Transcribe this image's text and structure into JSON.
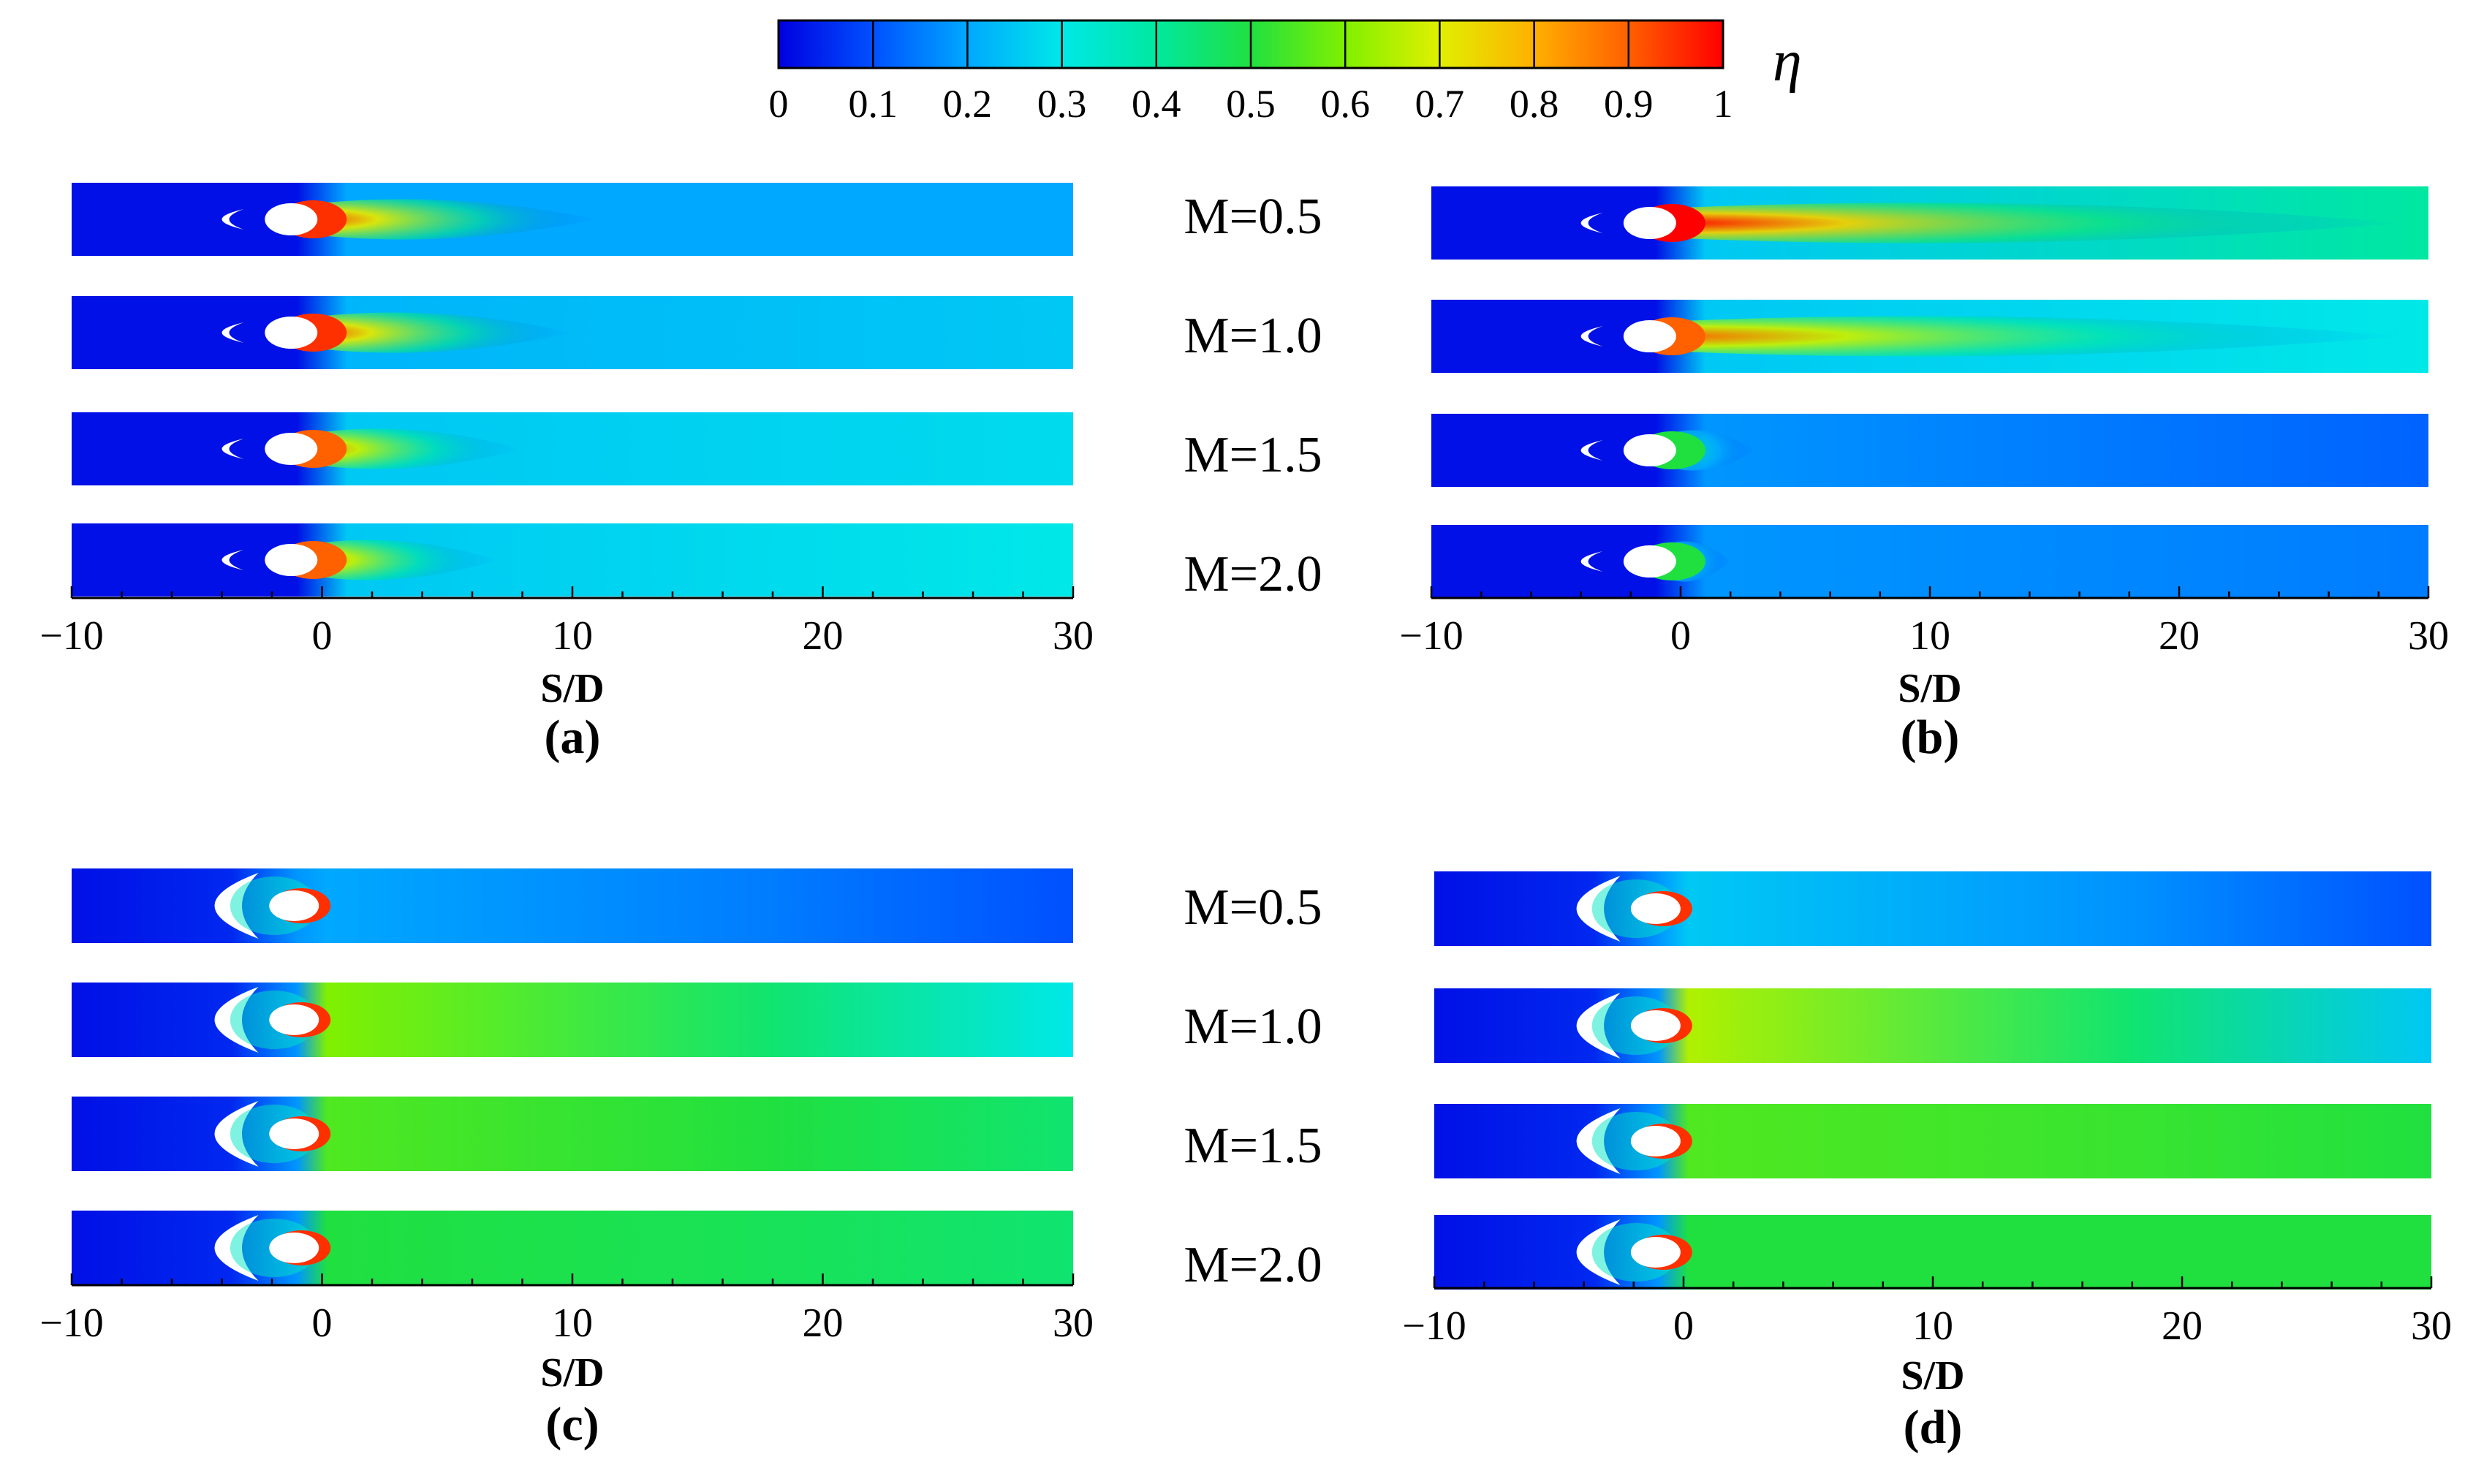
{
  "colorbar": {
    "symbol": "η",
    "ticks": [
      "0",
      "0.1",
      "0.2",
      "0.3",
      "0.4",
      "0.5",
      "0.6",
      "0.7",
      "0.8",
      "0.9",
      "1"
    ],
    "colors": [
      "#0000e0",
      "#0050ff",
      "#00a8ff",
      "#00e8e8",
      "#00e8a0",
      "#20e040",
      "#80f000",
      "#e0f000",
      "#ffb000",
      "#ff6000",
      "#ff0000"
    ]
  },
  "chart_data": [
    {
      "type": "heatmap",
      "panel": "(a)",
      "xlabel": "S/D",
      "xlim": [
        -10,
        30
      ],
      "xticks": [
        "−10",
        "0",
        "10",
        "20",
        "30"
      ],
      "quantity": "η",
      "rows": [
        {
          "label": "M=0.5",
          "hole_x": -1,
          "jet_peak": 0.95,
          "wake_length": 12,
          "base": 0.1,
          "far": 0.2
        },
        {
          "label": "M=1.0",
          "hole_x": -1,
          "jet_peak": 0.95,
          "wake_length": 11,
          "base": 0.12,
          "far": 0.25
        },
        {
          "label": "M=1.5",
          "hole_x": -1,
          "jet_peak": 0.9,
          "wake_length": 9,
          "base": 0.15,
          "far": 0.28
        },
        {
          "label": "M=2.0",
          "hole_x": -1,
          "jet_peak": 0.9,
          "wake_length": 8,
          "base": 0.15,
          "far": 0.3
        }
      ]
    },
    {
      "type": "heatmap",
      "panel": "(b)",
      "xlabel": "S/D",
      "xlim": [
        -10,
        30
      ],
      "xticks": [
        "−10",
        "0",
        "10",
        "20",
        "30"
      ],
      "quantity": "η",
      "rows": [
        {
          "label": "M=0.5",
          "hole_x": -1,
          "jet_peak": 1.0,
          "wake_length": 30,
          "base": 0.15,
          "far": 0.4
        },
        {
          "label": "M=1.0",
          "hole_x": -1,
          "jet_peak": 0.9,
          "wake_length": 30,
          "base": 0.15,
          "far": 0.3
        },
        {
          "label": "M=1.5",
          "hole_x": -1,
          "jet_peak": 0.5,
          "wake_length": 4,
          "base": 0.08,
          "far": 0.12
        },
        {
          "label": "M=2.0",
          "hole_x": -1,
          "jet_peak": 0.5,
          "wake_length": 3,
          "base": 0.08,
          "far": 0.15
        }
      ]
    },
    {
      "type": "heatmap",
      "panel": "(c)",
      "xlabel": "S/D",
      "xlim": [
        -10,
        30
      ],
      "xticks": [
        "−10",
        "0",
        "10",
        "20",
        "30"
      ],
      "quantity": "η",
      "rows": [
        {
          "label": "M=0.5",
          "hole_x": -1,
          "upstream_hole_x": -4,
          "base": 0.2,
          "far": 0.1
        },
        {
          "label": "M=1.0",
          "hole_x": -1,
          "upstream_hole_x": -4,
          "base": 0.6,
          "far": 0.3
        },
        {
          "label": "M=1.5",
          "hole_x": -1,
          "upstream_hole_x": -4,
          "base": 0.55,
          "far": 0.45
        },
        {
          "label": "M=2.0",
          "hole_x": -1,
          "upstream_hole_x": -4,
          "base": 0.5,
          "far": 0.45
        }
      ]
    },
    {
      "type": "heatmap",
      "panel": "(d)",
      "xlabel": "S/D",
      "xlim": [
        -10,
        30
      ],
      "xticks": [
        "−10",
        "0",
        "10",
        "20",
        "30"
      ],
      "quantity": "η",
      "rows": [
        {
          "label": "M=0.5",
          "hole_x": -1,
          "upstream_hole_x": -4,
          "base": 0.25,
          "far": 0.1
        },
        {
          "label": "M=1.0",
          "hole_x": -1,
          "upstream_hole_x": -4,
          "base": 0.65,
          "far": 0.25
        },
        {
          "label": "M=1.5",
          "hole_x": -1,
          "upstream_hole_x": -4,
          "base": 0.55,
          "far": 0.5
        },
        {
          "label": "M=2.0",
          "hole_x": -1,
          "upstream_hole_x": -4,
          "base": 0.5,
          "far": 0.5
        }
      ]
    }
  ]
}
